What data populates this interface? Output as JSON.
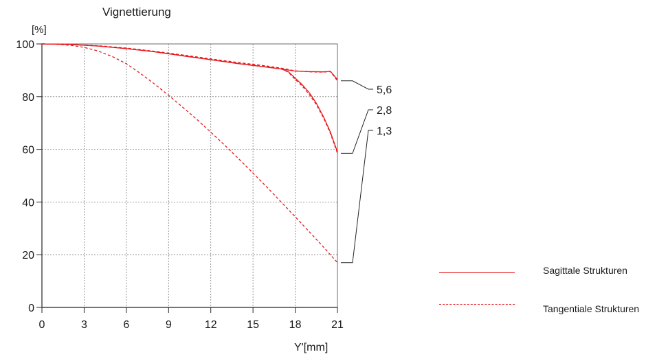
{
  "chart_data": {
    "type": "line",
    "title": "Vignettierung",
    "ylabel": "[%]",
    "xlabel": "Y'[mm]",
    "xlim": [
      0,
      21
    ],
    "ylim": [
      0,
      100
    ],
    "xticks": [
      0,
      3,
      6,
      9,
      12,
      15,
      18,
      21
    ],
    "yticks": [
      0,
      20,
      40,
      60,
      80,
      100
    ],
    "grid": true,
    "line_color": "#e8191e",
    "legend": [
      {
        "label": "Sagittale Strukturen",
        "style": "solid"
      },
      {
        "label": "Tangentiale Strukturen",
        "style": "dashed"
      }
    ],
    "annotations": [
      "5,6",
      "2,8",
      "1,3"
    ],
    "series": [
      {
        "aperture": "5,6",
        "style": "solid",
        "x": [
          0,
          2,
          4,
          6,
          8,
          10,
          12,
          14,
          16,
          17,
          18,
          19,
          20,
          20.5,
          21
        ],
        "y": [
          100,
          99.8,
          99.2,
          98.2,
          97,
          95.5,
          94,
          92.5,
          91.2,
          90.5,
          89.7,
          89.5,
          89.4,
          89.6,
          86.5
        ]
      },
      {
        "aperture": "5,6",
        "style": "dashed",
        "x": [
          0,
          2,
          4,
          6,
          8,
          10,
          12,
          14,
          16,
          17,
          18,
          19,
          20,
          20.5,
          21
        ],
        "y": [
          100,
          99.8,
          99.3,
          98.4,
          97.2,
          95.8,
          94.3,
          92.9,
          91.6,
          90.8,
          89.8,
          89.4,
          89.3,
          89.5,
          86
        ]
      },
      {
        "aperture": "2,8",
        "style": "solid",
        "x": [
          0,
          2,
          4,
          6,
          8,
          10,
          12,
          14,
          16,
          17,
          17.5,
          18,
          18.5,
          19,
          19.5,
          20,
          20.5,
          21
        ],
        "y": [
          100,
          99.8,
          99.2,
          98.2,
          97,
          95.5,
          94,
          92.5,
          91.2,
          90.5,
          89.5,
          87,
          84.5,
          81.5,
          77.5,
          72.5,
          66.5,
          59
        ]
      },
      {
        "aperture": "2,8",
        "style": "dashed",
        "x": [
          0,
          2,
          4,
          6,
          8,
          10,
          12,
          14,
          16,
          17,
          17.5,
          18,
          18.5,
          19,
          19.5,
          20,
          20.5,
          21
        ],
        "y": [
          100,
          99.8,
          99.3,
          98.4,
          97.2,
          95.8,
          94.3,
          92.9,
          91.6,
          90.6,
          89.3,
          86.5,
          84,
          80.8,
          77,
          72,
          66,
          58.5
        ]
      },
      {
        "aperture": "1,3",
        "style": "dashed",
        "x": [
          0,
          1,
          2,
          3,
          4,
          5,
          6,
          7,
          8,
          9,
          10,
          11,
          12,
          13,
          14,
          15,
          16,
          17,
          18,
          19,
          20,
          21
        ],
        "y": [
          100,
          99.9,
          99.5,
          98.7,
          97.3,
          95.2,
          92.5,
          88.8,
          84.8,
          80.5,
          76,
          71.4,
          66.5,
          61.5,
          56.3,
          51,
          45.6,
          40,
          34.4,
          28.7,
          23,
          17
        ]
      }
    ]
  }
}
